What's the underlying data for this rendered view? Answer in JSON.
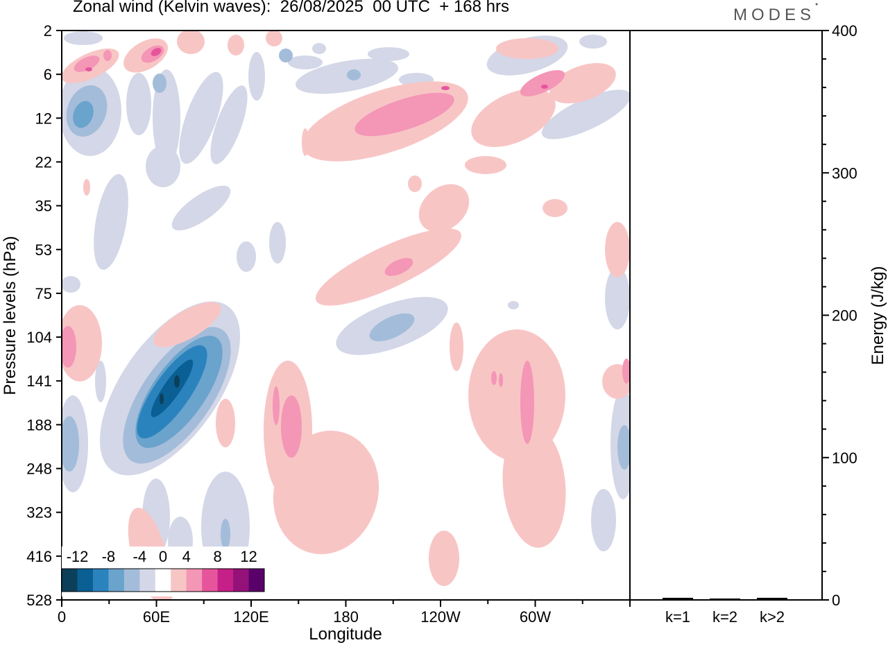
{
  "header": {
    "title": "Zonal wind (Kelvin waves):  26/08/2025  00 UTC  + 168 hrs",
    "brand": "MODES"
  },
  "chart_data": [
    {
      "type": "heatmap",
      "xlabel": "Longitude",
      "ylabel": "Pressure levels (hPa)",
      "x_ticks": [
        "0",
        "60E",
        "120E",
        "180",
        "120W",
        "60W"
      ],
      "y_ticks": [
        "2",
        "6",
        "12",
        "22",
        "35",
        "53",
        "75",
        "104",
        "141",
        "188",
        "248",
        "323",
        "416",
        "528"
      ],
      "colorbar": {
        "labels": [
          "-12",
          "-8",
          "-4",
          "0",
          "4",
          "8",
          "12"
        ],
        "levels": [
          -14,
          -12,
          -10,
          -8,
          -6,
          -4,
          -2,
          2,
          4,
          6,
          8,
          10,
          12,
          14
        ],
        "colors": [
          "#0c3f5a",
          "#0a5f94",
          "#2b83bd",
          "#6aa3cc",
          "#a3bcd9",
          "#d3d7e7",
          "#ffffff",
          "#f8c5c5",
          "#f496b6",
          "#e6559c",
          "#c51f88",
          "#95117a",
          "#5a006a"
        ]
      },
      "features": [
        {
          "name": "Tropospheric easterly core over Indian Ocean",
          "x_range": [
            "50E",
            "100E"
          ],
          "p_range": [
            104,
            300
          ],
          "min_value": -14
        },
        {
          "name": "Westerly anomaly over central Pacific",
          "x_range": [
            "130E",
            "150E"
          ],
          "p_range": [
            141,
            416
          ],
          "max_value": 6
        },
        {
          "name": "Westerly anomaly over eastern Pacific",
          "x_range": [
            "90W",
            "60W"
          ],
          "p_range": [
            104,
            416
          ],
          "max_value": 6
        },
        {
          "name": "Stratospheric westerly bands",
          "x_range": [
            "160E",
            "100W"
          ],
          "p_range": [
            6,
            75
          ],
          "max_value": 8
        }
      ]
    },
    {
      "type": "bar",
      "ylabel": "Energy (J/kg)",
      "categories": [
        "k=1",
        "k=2",
        "k>2"
      ],
      "values": [
        1,
        0.5,
        1
      ],
      "ylim": [
        0,
        400
      ],
      "y_ticks": [
        "0",
        "100",
        "200",
        "300",
        "400"
      ]
    }
  ]
}
